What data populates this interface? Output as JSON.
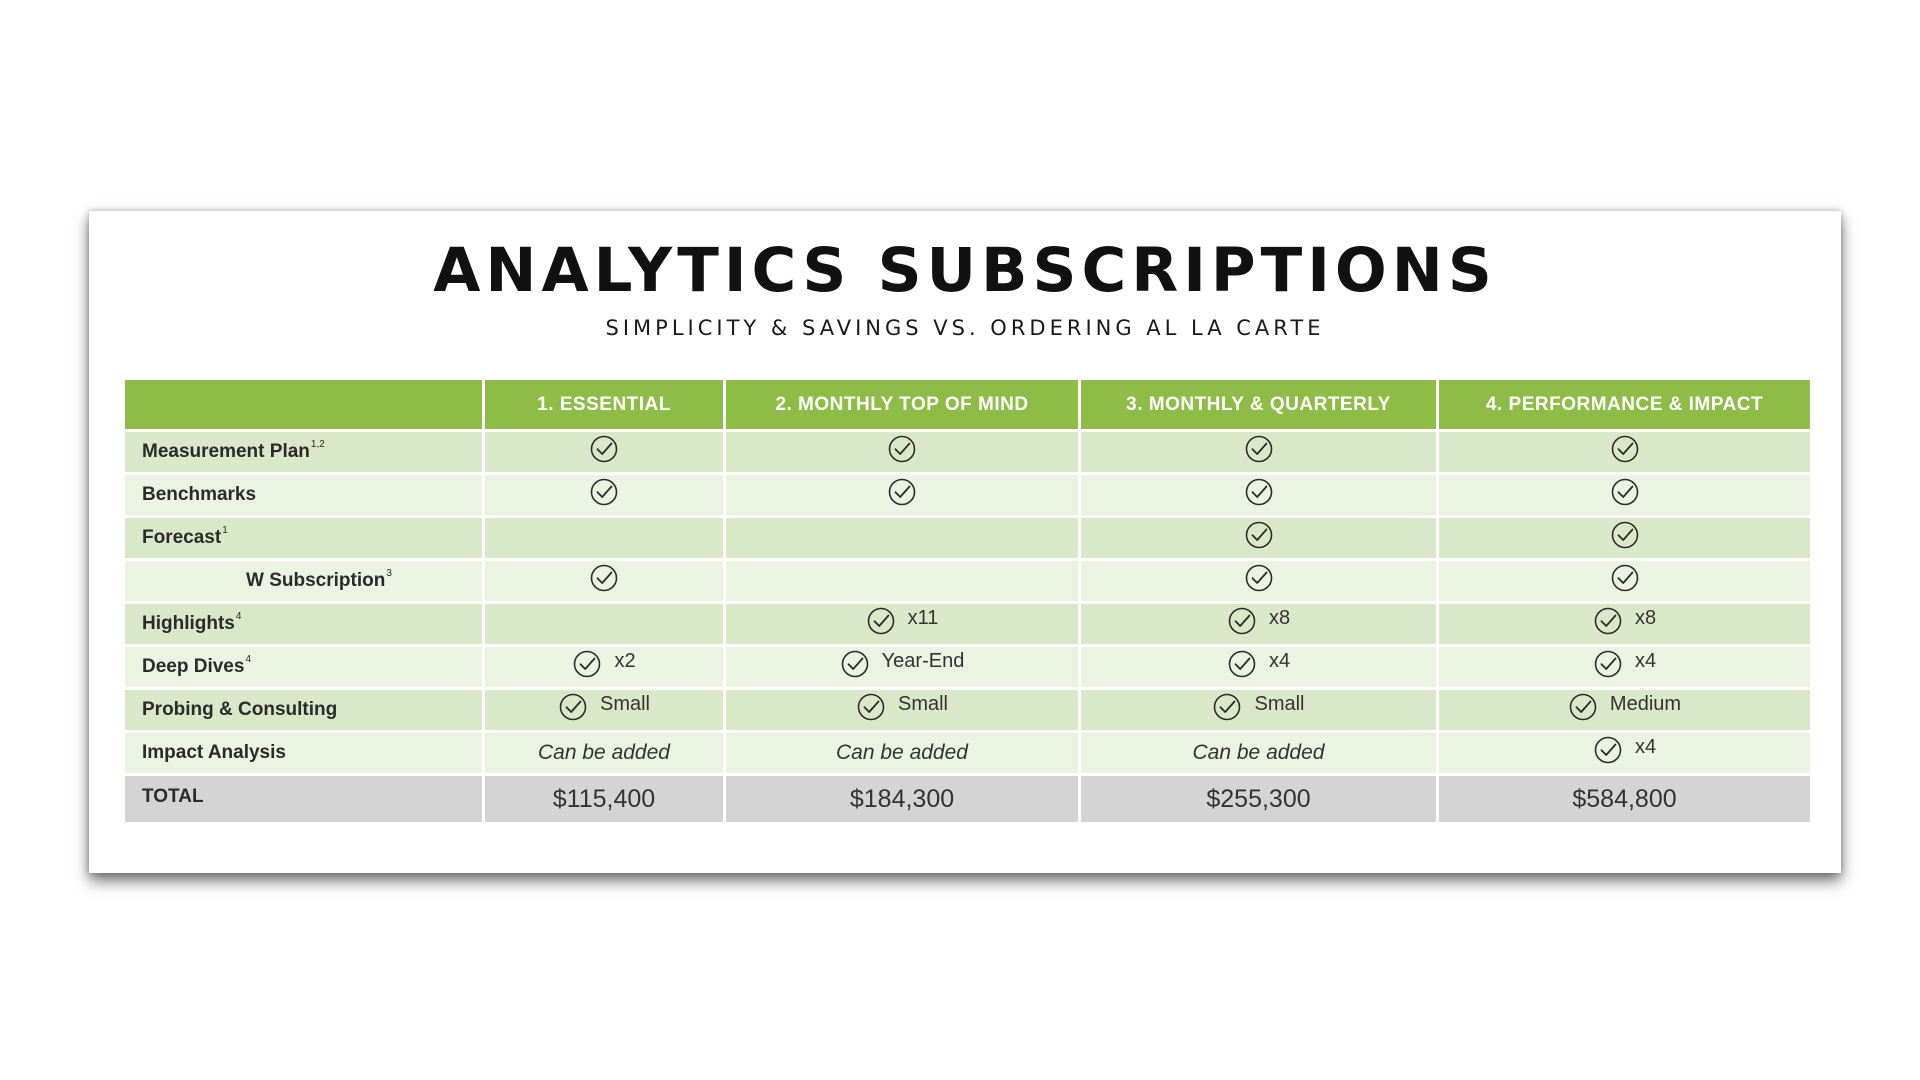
{
  "title": "ANALYTICS SUBSCRIPTIONS",
  "subtitle": "SIMPLICITY & SAVINGS VS. ORDERING AL LA CARTE",
  "columns": [
    "1.  ESSENTIAL",
    "2.  MONTHLY TOP OF MIND",
    "3.  MONTHLY & QUARTERLY",
    "4.  PERFORMANCE & IMPACT"
  ],
  "rows": [
    {
      "label": "Measurement Plan",
      "sup": "1,2",
      "cells": [
        {
          "check": true,
          "note": ""
        },
        {
          "check": true,
          "note": ""
        },
        {
          "check": true,
          "note": ""
        },
        {
          "check": true,
          "note": ""
        }
      ]
    },
    {
      "label": "Benchmarks",
      "sup": "",
      "cells": [
        {
          "check": true,
          "note": ""
        },
        {
          "check": true,
          "note": ""
        },
        {
          "check": true,
          "note": ""
        },
        {
          "check": true,
          "note": ""
        }
      ]
    },
    {
      "label": "Forecast",
      "sup": "1",
      "cells": [
        {
          "check": false,
          "note": ""
        },
        {
          "check": false,
          "note": ""
        },
        {
          "check": true,
          "note": ""
        },
        {
          "check": true,
          "note": ""
        }
      ]
    },
    {
      "label": "W Subscription",
      "sup": "3",
      "cells": [
        {
          "check": true,
          "note": ""
        },
        {
          "check": false,
          "note": ""
        },
        {
          "check": true,
          "note": ""
        },
        {
          "check": true,
          "note": ""
        }
      ]
    },
    {
      "label": "Highlights",
      "sup": "4",
      "cells": [
        {
          "check": false,
          "note": ""
        },
        {
          "check": true,
          "note": "x11"
        },
        {
          "check": true,
          "note": "x8"
        },
        {
          "check": true,
          "note": "x8"
        }
      ]
    },
    {
      "label": "Deep Dives",
      "sup": "4",
      "cells": [
        {
          "check": true,
          "note": "x2"
        },
        {
          "check": true,
          "note": "Year-End"
        },
        {
          "check": true,
          "note": "x4"
        },
        {
          "check": true,
          "note": "x4"
        }
      ]
    },
    {
      "label": "Probing & Consulting",
      "sup": "",
      "cells": [
        {
          "check": true,
          "note": "Small"
        },
        {
          "check": true,
          "note": "Small"
        },
        {
          "check": true,
          "note": "Small"
        },
        {
          "check": true,
          "note": "Medium"
        }
      ]
    },
    {
      "label": "Impact Analysis",
      "sup": "",
      "cells": [
        {
          "check": false,
          "note": "",
          "text": "Can be added"
        },
        {
          "check": false,
          "note": "",
          "text": "Can be added"
        },
        {
          "check": false,
          "note": "",
          "text": "Can be added"
        },
        {
          "check": true,
          "note": "x4"
        }
      ]
    }
  ],
  "total": {
    "label": "TOTAL",
    "prices": [
      "$115,400",
      "$184,300",
      "$255,300",
      "$584,800"
    ]
  },
  "colors": {
    "header_green": "#8dbd47",
    "row_dark": "#d9e8c8",
    "row_light": "#ebf3e3",
    "total_gray": "#d4d4d4"
  },
  "icons": {
    "check": "check-circle-icon"
  }
}
